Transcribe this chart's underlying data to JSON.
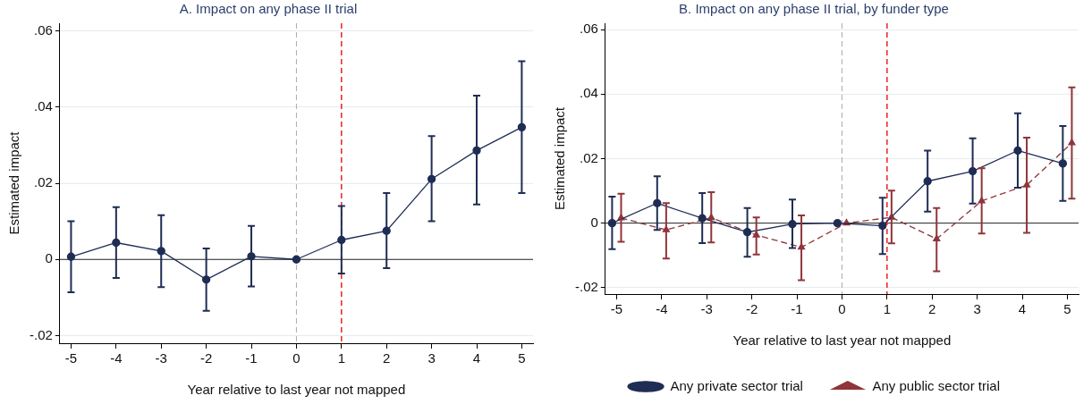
{
  "chart_data": [
    {
      "type": "line",
      "title": "A. Impact on any phase II trial",
      "xlabel": "Year relative to last year not mapped",
      "ylabel": "Estimated impact",
      "xlim": [
        -5.25,
        5.25
      ],
      "xticks": [
        -5,
        -4,
        -3,
        -2,
        -1,
        0,
        1,
        2,
        3,
        4,
        5
      ],
      "ylim": [
        -0.022,
        0.062
      ],
      "yticks": [
        {
          "value": -0.02,
          "label": "-.02"
        },
        0,
        {
          "value": 0.02,
          "label": ".02"
        },
        {
          "value": 0.04,
          "label": ".04"
        },
        {
          "value": 0.06,
          "label": ".06"
        }
      ],
      "grid": "y",
      "legend": false,
      "marker": "circle",
      "line_style": "solid",
      "series": [
        {
          "color": "#1f2d55",
          "x": [
            -5,
            -4,
            -3,
            -2,
            -1,
            0,
            1,
            2,
            3,
            4,
            5
          ],
          "values": [
            0.0007,
            0.0044,
            0.0022,
            -0.0053,
            0.0008,
            0,
            0.0051,
            0.0075,
            0.0211,
            0.0286,
            0.0347
          ],
          "errors": [
            [
              -0.0086,
              0.01
            ],
            [
              -0.0049,
              0.0137
            ],
            [
              -0.0073,
              0.0116
            ],
            [
              -0.0135,
              0.0029
            ],
            [
              -0.0071,
              0.0088
            ],
            null,
            [
              -0.0037,
              0.014
            ],
            [
              -0.0023,
              0.0174
            ],
            [
              0.01,
              0.0324
            ],
            [
              0.0144,
              0.043
            ],
            [
              0.0174,
              0.052
            ]
          ]
        }
      ],
      "ref_lines": [
        {
          "axis": "y",
          "value": 0,
          "color": "#222222",
          "line_style": "solid"
        },
        {
          "axis": "x",
          "value": 0,
          "color": "#aaaaaa",
          "line_style": "dashed"
        },
        {
          "axis": "x",
          "value": 1,
          "color": "#ee2222",
          "line_style": "dashed"
        }
      ]
    },
    {
      "type": "line",
      "title": "B. Impact on any phase II trial, by funder type",
      "xlabel": "Year relative to last year not mapped",
      "ylabel": "Estimated impact",
      "xlim": [
        -5.25,
        5.25
      ],
      "xticks": [
        -5,
        -4,
        -3,
        -2,
        -1,
        0,
        1,
        2,
        3,
        4,
        5
      ],
      "ylim": [
        -0.022,
        0.062
      ],
      "yticks": [
        {
          "value": -0.02,
          "label": "-.02"
        },
        0,
        {
          "value": 0.02,
          "label": ".02"
        },
        {
          "value": 0.04,
          "label": ".04"
        },
        {
          "value": 0.06,
          "label": ".06"
        }
      ],
      "grid": "y",
      "legend": "bottom",
      "series": [
        {
          "name": "Any private sector trial",
          "color": "#1f2d55",
          "marker": "circle",
          "line_style": "solid",
          "x": [
            -5.1,
            -4.1,
            -3.1,
            -2.1,
            -1.1,
            -0.1,
            0.9,
            1.9,
            2.9,
            3.9,
            4.9
          ],
          "values": [
            0,
            0.0062,
            0.0015,
            -0.0028,
            -0.0003,
            0,
            -0.0008,
            0.013,
            0.0161,
            0.0225,
            0.0185
          ],
          "errors": [
            [
              -0.0081,
              0.0082
            ],
            [
              -0.0021,
              0.0145
            ],
            [
              -0.0062,
              0.0093
            ],
            [
              -0.0104,
              0.0047
            ],
            [
              -0.0077,
              0.0073
            ],
            null,
            [
              -0.0096,
              0.0079
            ],
            [
              0.0036,
              0.0225
            ],
            [
              0.0061,
              0.0263
            ],
            [
              0.011,
              0.0341
            ],
            [
              0.0069,
              0.0301
            ]
          ]
        },
        {
          "name": "Any public sector trial",
          "color": "#90353b",
          "marker": "triangle",
          "line_style": "dashed",
          "x": [
            -4.9,
            -3.9,
            -2.9,
            -1.9,
            -0.9,
            0.1,
            1.1,
            2.1,
            3.1,
            4.1,
            5.1
          ],
          "values": [
            0.0016,
            -0.0021,
            0.0017,
            -0.0037,
            -0.0075,
            0,
            0.0018,
            -0.0049,
            0.0069,
            0.0118,
            0.0249
          ],
          "errors": [
            [
              -0.0058,
              0.0091
            ],
            [
              -0.011,
              0.0062
            ],
            [
              -0.006,
              0.0096
            ],
            [
              -0.0097,
              0.0018
            ],
            [
              -0.0177,
              0.0024
            ],
            null,
            [
              -0.0063,
              0.0101
            ],
            [
              -0.0149,
              0.0047
            ],
            [
              -0.0032,
              0.017
            ],
            [
              -0.003,
              0.0265
            ],
            [
              0.0076,
              0.0421
            ]
          ]
        }
      ],
      "ref_lines": [
        {
          "axis": "y",
          "value": 0,
          "color": "#222222",
          "line_style": "solid"
        },
        {
          "axis": "x",
          "value": 0,
          "color": "#aaaaaa",
          "line_style": "dashed"
        },
        {
          "axis": "x",
          "value": 1,
          "color": "#ee2222",
          "line_style": "dashed"
        }
      ]
    }
  ]
}
